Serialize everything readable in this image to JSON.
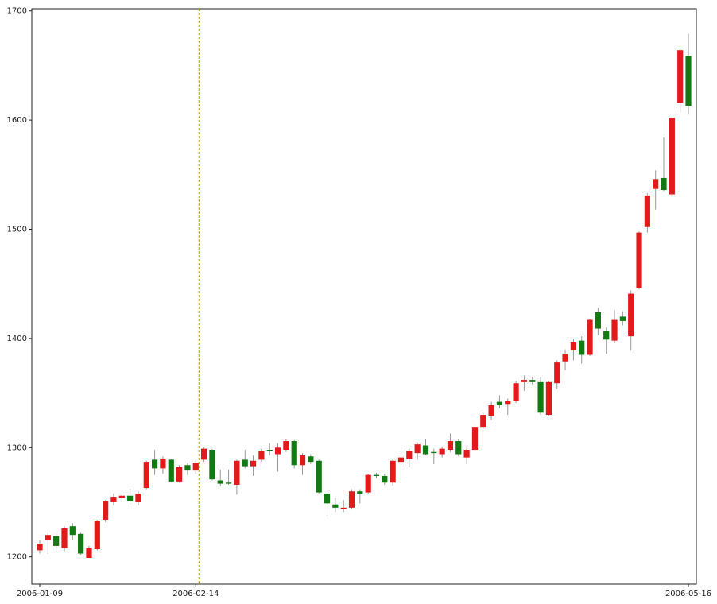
{
  "chart_data": {
    "type": "candlestick",
    "categories": [
      "2006-01-09",
      null,
      null,
      null,
      null,
      null,
      null,
      null,
      null,
      null,
      null,
      null,
      null,
      null,
      null,
      null,
      null,
      null,
      null,
      "2006-02-14",
      null,
      null,
      null,
      null,
      null,
      null,
      null,
      null,
      null,
      null,
      null,
      null,
      null,
      null,
      null,
      null,
      null,
      null,
      null,
      null,
      null,
      null,
      null,
      null,
      null,
      null,
      null,
      null,
      null,
      null,
      null,
      null,
      null,
      null,
      null,
      null,
      null,
      null,
      null,
      null,
      null,
      null,
      null,
      null,
      null,
      null,
      null,
      null,
      null,
      null,
      null,
      null,
      null,
      null,
      null,
      null,
      null,
      null,
      null,
      "2006-05-16"
    ],
    "open": [
      1206,
      1215,
      1219,
      1208,
      1228,
      1221,
      1199,
      1207,
      1234,
      1250,
      1254,
      1256,
      1250,
      1263,
      1289,
      1281,
      1289,
      1269,
      1284,
      1279,
      1289,
      1298,
      1270,
      1268,
      1266,
      1289,
      1283,
      1289,
      1298,
      1294,
      1298,
      1306,
      1284,
      1292,
      1288,
      1258,
      1248,
      1244,
      1245,
      1260,
      1259,
      1275,
      1274,
      1268,
      1287,
      1290,
      1295,
      1302,
      1296,
      1294,
      1298,
      1306,
      1291,
      1298,
      1319,
      1329,
      1342,
      1340,
      1343,
      1360,
      1362,
      1360,
      1330,
      1359,
      1379,
      1389,
      1398,
      1385,
      1424,
      1407,
      1398,
      1420,
      1402,
      1446,
      1502,
      1537,
      1547,
      1532,
      1616,
      1659
    ],
    "high": [
      1215,
      1222,
      1221,
      1228,
      1231,
      1222,
      1210,
      1234,
      1252,
      1258,
      1258,
      1262,
      1260,
      1288,
      1298,
      1292,
      1290,
      1284,
      1286,
      1288,
      1300,
      1299,
      1280,
      1280,
      1289,
      1298,
      1293,
      1299,
      1304,
      1304,
      1308,
      1307,
      1295,
      1294,
      1289,
      1260,
      1254,
      1252,
      1262,
      1262,
      1276,
      1277,
      1276,
      1290,
      1296,
      1299,
      1305,
      1308,
      1299,
      1301,
      1313,
      1308,
      1300,
      1320,
      1332,
      1342,
      1348,
      1345,
      1361,
      1366,
      1365,
      1365,
      1361,
      1380,
      1390,
      1400,
      1402,
      1418,
      1428,
      1410,
      1426,
      1425,
      1444,
      1498,
      1533,
      1554,
      1584,
      1603,
      1665,
      1679
    ],
    "low": [
      1203,
      1203,
      1204,
      1205,
      1215,
      1202,
      1199,
      1206,
      1232,
      1247,
      1250,
      1248,
      1247,
      1262,
      1275,
      1276,
      1268,
      1268,
      1275,
      1276,
      1287,
      1270,
      1265,
      1266,
      1257,
      1281,
      1274,
      1287,
      1293,
      1278,
      1296,
      1281,
      1275,
      1285,
      1258,
      1238,
      1241,
      1241,
      1244,
      1249,
      1258,
      1272,
      1266,
      1265,
      1284,
      1282,
      1289,
      1293,
      1285,
      1291,
      1296,
      1292,
      1285,
      1297,
      1317,
      1325,
      1336,
      1330,
      1341,
      1352,
      1358,
      1330,
      1329,
      1354,
      1371,
      1380,
      1377,
      1384,
      1403,
      1386,
      1396,
      1412,
      1389,
      1445,
      1497,
      1518,
      1535,
      1531,
      1607,
      1605
    ],
    "close": [
      1212,
      1220,
      1210,
      1226,
      1220,
      1203,
      1208,
      1233,
      1251,
      1255,
      1256,
      1251,
      1258,
      1287,
      1281,
      1290,
      1269,
      1282,
      1279,
      1286,
      1299,
      1271,
      1267,
      1267,
      1288,
      1283,
      1288,
      1297,
      1297,
      1300,
      1306,
      1284,
      1293,
      1287,
      1259,
      1249,
      1245,
      1245,
      1260,
      1258,
      1275,
      1274,
      1268,
      1288,
      1291,
      1297,
      1303,
      1294,
      1295,
      1299,
      1306,
      1294,
      1298,
      1319,
      1330,
      1339,
      1339,
      1343,
      1359,
      1362,
      1360,
      1332,
      1360,
      1378,
      1386,
      1397,
      1385,
      1417,
      1409,
      1399,
      1417,
      1416,
      1441,
      1497,
      1531,
      1546,
      1536,
      1602,
      1664,
      1613
    ],
    "up_color": "#e31a1c",
    "down_color": "#127a12",
    "wick_color": "#999999",
    "ylim": [
      1175,
      1702
    ],
    "yticks": [
      1200,
      1300,
      1400,
      1500,
      1600,
      1700
    ],
    "vline": "2006-02-14",
    "vline_color": "#b8a000"
  }
}
